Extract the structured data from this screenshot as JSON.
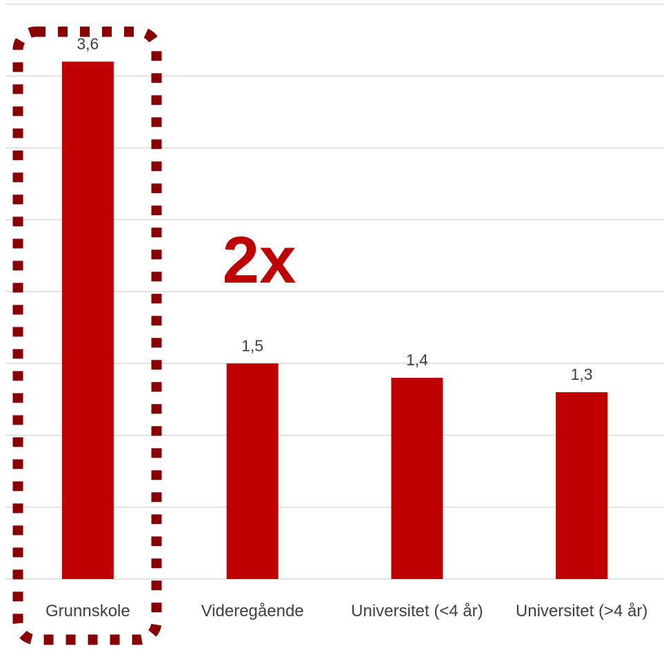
{
  "chart_data": {
    "type": "bar",
    "categories": [
      "Grunnskole",
      "Videregående",
      "Universitet (<4 år)",
      "Universitet (>4 år)"
    ],
    "values": [
      3.6,
      1.5,
      1.4,
      1.3
    ],
    "value_labels": [
      "3,6",
      "1,5",
      "1,4",
      "1,3"
    ],
    "title": "",
    "xlabel": "",
    "ylabel": "",
    "ylim": [
      0,
      4
    ],
    "grid_step": 0.5,
    "grid": true,
    "legend": "none",
    "bar_color": "#C00000",
    "annotation": "2x",
    "annotation_color": "#C00000",
    "highlight_category": "Grunnskole",
    "highlight_color": "#8B0000"
  }
}
